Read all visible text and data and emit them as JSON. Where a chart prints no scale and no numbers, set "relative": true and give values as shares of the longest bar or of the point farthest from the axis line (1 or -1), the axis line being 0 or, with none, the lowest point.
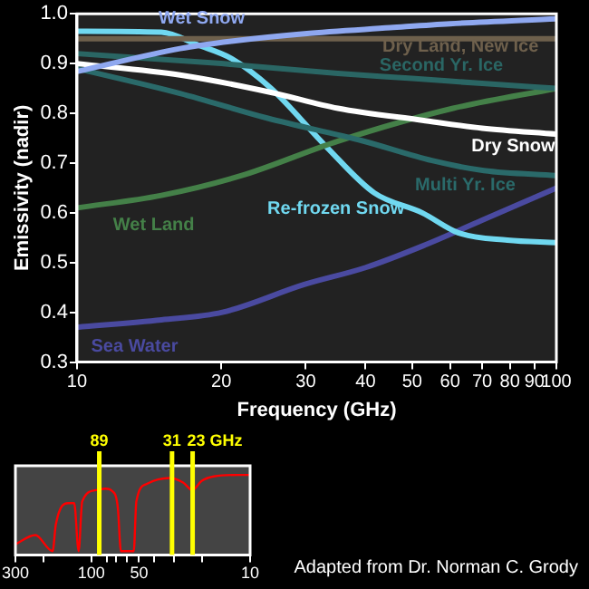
{
  "chart_data": [
    {
      "type": "line",
      "xlabel": "Frequency (GHz)",
      "ylabel": "Emissivity (nadir)",
      "log": "x",
      "xlim": [
        10,
        100
      ],
      "xticks": [
        10,
        20,
        30,
        40,
        50,
        60,
        70,
        80,
        90,
        100
      ],
      "ylim": [
        0.3,
        1
      ],
      "yticks": [
        0.3,
        0.4,
        0.5,
        0.6,
        0.7,
        0.8,
        0.9,
        {
          "value": 1,
          "label": "1.0"
        }
      ],
      "series": [
        {
          "name": "Wet Snow",
          "color": "#8fa8f0",
          "x": [
            10,
            16.4,
            21,
            29.8,
            45,
            60,
            100
          ],
          "values": [
            0.884,
            0.93,
            0.945,
            0.96,
            0.972,
            0.98,
            0.99
          ]
        },
        {
          "name": "Dry Land, New Ice",
          "color": "#6e604c",
          "x": [
            10,
            30,
            100
          ],
          "values": [
            0.95,
            0.95,
            0.95
          ]
        },
        {
          "name": "Second Yr. Ice",
          "color": "#2a6664",
          "x": [
            10,
            20,
            35,
            50,
            70,
            100
          ],
          "values": [
            0.92,
            0.9,
            0.88,
            0.87,
            0.86,
            0.85
          ]
        },
        {
          "name": "Dry Snow",
          "color": "#ffffff",
          "x": [
            10,
            16.4,
            25.4,
            35,
            52.5,
            70,
            100
          ],
          "values": [
            0.9,
            0.877,
            0.842,
            0.81,
            0.786,
            0.77,
            0.758
          ]
        },
        {
          "name": "Multi Yr. Ice",
          "color": "#2a6a6a",
          "x": [
            10,
            16.4,
            25,
            39.3,
            55,
            70.6,
            100
          ],
          "values": [
            0.89,
            0.84,
            0.79,
            0.745,
            0.705,
            0.685,
            0.675
          ]
        },
        {
          "name": "Wet Land",
          "color": "#448048",
          "x": [
            10,
            15,
            21.9,
            35,
            60.9,
            100
          ],
          "values": [
            0.61,
            0.635,
            0.674,
            0.744,
            0.81,
            0.85
          ]
        },
        {
          "name": "Re-frozen Snow",
          "color": "#70d8f0",
          "x": [
            10,
            15,
            17.9,
            21,
            25.4,
            33.1,
            41.7,
            52.5,
            62.4,
            79,
            100
          ],
          "values": [
            0.965,
            0.963,
            0.937,
            0.91,
            0.85,
            0.733,
            0.64,
            0.6,
            0.56,
            0.545,
            0.54
          ]
        },
        {
          "name": "Sea Water",
          "color": "#4a4aa0",
          "x": [
            10,
            15,
            20.1,
            29.8,
            40,
            52.5,
            70,
            100
          ],
          "values": [
            0.37,
            0.385,
            0.4,
            0.456,
            0.49,
            0.533,
            0.585,
            0.65
          ]
        }
      ],
      "annotations": [
        "Adapted from Dr. Norman C. Grody"
      ]
    },
    {
      "type": "line",
      "log": "x",
      "relative": true,
      "tick_labels": "x",
      "xlim": [
        300,
        10
      ],
      "xticks": [
        300,
        {
          "value": 200,
          "label": null
        },
        100,
        {
          "value": 80,
          "label": null
        },
        {
          "value": 70,
          "label": null
        },
        {
          "value": 60,
          "label": null
        },
        50,
        {
          "value": 40,
          "label": null
        },
        {
          "value": 30,
          "label": null
        },
        {
          "value": 20,
          "label": null
        },
        10
      ],
      "series": [
        {
          "color": "#ff0000",
          "x": [
            300,
            225,
            175,
            167,
            140,
            128,
            120,
            114,
            93,
            81,
            74,
            68,
            65,
            54,
            52,
            45,
            38,
            32,
            26.4,
            23.1,
            20.2,
            16.9,
            11.8,
            10
          ],
          "values": [
            0.09,
            0.21,
            0,
            0.35,
            0.63,
            0.63,
            0,
            0.65,
            0.8,
            0.82,
            0.79,
            0.57,
            0,
            0,
            0.65,
            0.88,
            0.94,
            0.96,
            0.9,
            0.8,
            0.92,
            0.98,
            1,
            1
          ]
        }
      ],
      "ref_lines": [
        {
          "axis": "x",
          "value": 89,
          "label": "89",
          "color": "#ffff00"
        },
        {
          "axis": "x",
          "value": 31,
          "label": "31",
          "color": "#ffff00"
        },
        {
          "axis": "x",
          "value": 23,
          "label": "23 GHz",
          "color": "#ffff00"
        }
      ]
    }
  ]
}
